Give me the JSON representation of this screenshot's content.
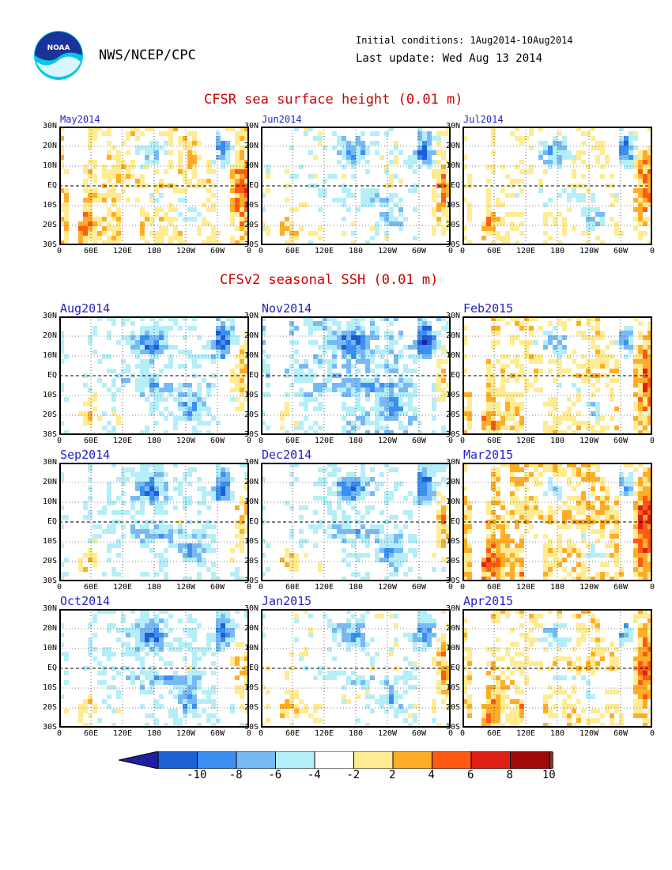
{
  "header": {
    "org": "NWS/NCEP/CPC",
    "logo_text": "NOAA",
    "initial_conditions": "Initial conditions: 1Aug2014-10Aug2014",
    "last_update": "Last update: Wed Aug 13 2014"
  },
  "sections": {
    "obs_title": "CFSR sea surface height (0.01 m)",
    "fcst_title": "CFSv2 seasonal SSH (0.01 m)"
  },
  "axes": {
    "y_ticks": [
      "30N",
      "20N",
      "10N",
      "EQ",
      "10S",
      "20S",
      "30S"
    ],
    "x_ticks": [
      "0",
      "60E",
      "120E",
      "180",
      "120W",
      "60W",
      "0"
    ]
  },
  "panels": [
    {
      "title": "May2014",
      "group": "obs",
      "col": 0,
      "row": 0,
      "bias": 0.2
    },
    {
      "title": "Jun2014",
      "group": "obs",
      "col": 1,
      "row": 0,
      "bias": 0.0
    },
    {
      "title": "Jul2014",
      "group": "obs",
      "col": 2,
      "row": 0,
      "bias": 0.1
    },
    {
      "title": "Aug2014",
      "group": "fcst",
      "col": 0,
      "row": 0,
      "bias": -0.1
    },
    {
      "title": "Nov2014",
      "group": "fcst",
      "col": 1,
      "row": 0,
      "bias": -0.2
    },
    {
      "title": "Feb2015",
      "group": "fcst",
      "col": 2,
      "row": 0,
      "bias": 0.2
    },
    {
      "title": "Sep2014",
      "group": "fcst",
      "col": 0,
      "row": 1,
      "bias": -0.1
    },
    {
      "title": "Dec2014",
      "group": "fcst",
      "col": 1,
      "row": 1,
      "bias": -0.1
    },
    {
      "title": "Mar2015",
      "group": "fcst",
      "col": 2,
      "row": 1,
      "bias": 0.3
    },
    {
      "title": "Oct2014",
      "group": "fcst",
      "col": 0,
      "row": 2,
      "bias": -0.1
    },
    {
      "title": "Jan2015",
      "group": "fcst",
      "col": 1,
      "row": 2,
      "bias": 0.0
    },
    {
      "title": "Apr2015",
      "group": "fcst",
      "col": 2,
      "row": 2,
      "bias": 0.2
    }
  ],
  "colorbar": {
    "labels": [
      "-10",
      "-8",
      "-6",
      "-4",
      "-2",
      "2",
      "4",
      "6",
      "8",
      "10"
    ],
    "colors": [
      "#1f1fa0",
      "#1e5fd6",
      "#3c8ff0",
      "#78b9f5",
      "#b4eef8",
      "#ffffff",
      "#ffeb91",
      "#ffad28",
      "#ff5a14",
      "#e11e14",
      "#a00a0a",
      "#6e3c32"
    ]
  }
}
